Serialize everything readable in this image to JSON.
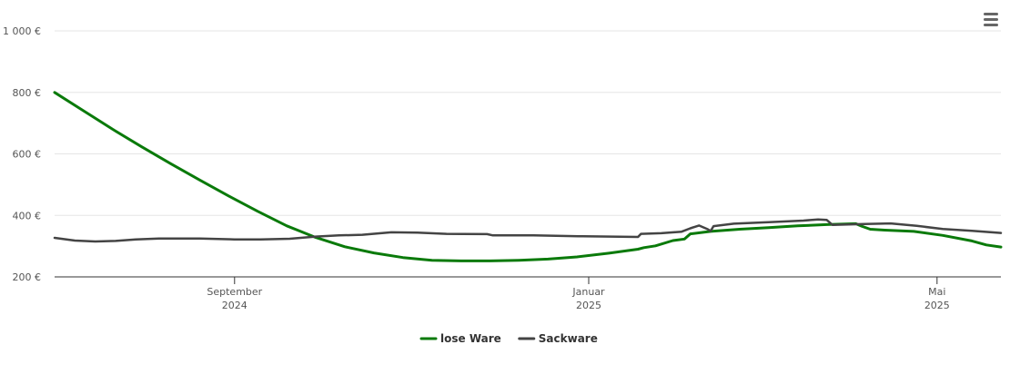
{
  "chart_data": {
    "type": "line",
    "title": "",
    "xlabel": "",
    "ylabel": "",
    "ylim": [
      200,
      1000
    ],
    "yticks": [
      {
        "value": 200,
        "label": "200 €"
      },
      {
        "value": 400,
        "label": "400 €"
      },
      {
        "value": 600,
        "label": "600 €"
      },
      {
        "value": 800,
        "label": "800 €"
      },
      {
        "value": 1000,
        "label": "1 000 €"
      }
    ],
    "xlim": [
      "2024-07-01",
      "2025-05-23"
    ],
    "xticks": [
      {
        "date": "2024-09-01",
        "label": [
          "September",
          "2024"
        ]
      },
      {
        "date": "2025-01-01",
        "label": [
          "Januar",
          "2025"
        ]
      },
      {
        "date": "2025-05-01",
        "label": [
          "Mai",
          "2025"
        ]
      }
    ],
    "grid": true,
    "legend_position": "bottom-center",
    "series": [
      {
        "name": "lose Ware",
        "color": "#0a7a0a",
        "points": [
          [
            "2024-07-01",
            800
          ],
          [
            "2024-07-11",
            740
          ],
          [
            "2024-07-21",
            680
          ],
          [
            "2024-07-31",
            623
          ],
          [
            "2024-08-10",
            568
          ],
          [
            "2024-08-20",
            515
          ],
          [
            "2024-08-30",
            463
          ],
          [
            "2024-09-09",
            413
          ],
          [
            "2024-09-19",
            366
          ],
          [
            "2024-09-29",
            328
          ],
          [
            "2024-10-09",
            298
          ],
          [
            "2024-10-19",
            278
          ],
          [
            "2024-10-29",
            263
          ],
          [
            "2024-11-08",
            254
          ],
          [
            "2024-11-18",
            252
          ],
          [
            "2024-11-28",
            252
          ],
          [
            "2024-12-08",
            254
          ],
          [
            "2024-12-18",
            258
          ],
          [
            "2024-12-28",
            265
          ],
          [
            "2025-01-08",
            277
          ],
          [
            "2025-01-18",
            290
          ],
          [
            "2025-01-20",
            295
          ],
          [
            "2025-01-24",
            301
          ],
          [
            "2025-01-30",
            318
          ],
          [
            "2025-02-03",
            323
          ],
          [
            "2025-02-05",
            340
          ],
          [
            "2025-02-12",
            348
          ],
          [
            "2025-02-22",
            355
          ],
          [
            "2025-03-04",
            360
          ],
          [
            "2025-03-14",
            366
          ],
          [
            "2025-03-24",
            370
          ],
          [
            "2025-04-03",
            373
          ],
          [
            "2025-04-05",
            365
          ],
          [
            "2025-04-08",
            355
          ],
          [
            "2025-04-13",
            352
          ],
          [
            "2025-04-23",
            348
          ],
          [
            "2025-05-03",
            335
          ],
          [
            "2025-05-13",
            317
          ],
          [
            "2025-05-18",
            304
          ],
          [
            "2025-05-23",
            297
          ]
        ]
      },
      {
        "name": "Sackware",
        "color": "#444444",
        "points": [
          [
            "2024-07-01",
            327
          ],
          [
            "2024-07-08",
            318
          ],
          [
            "2024-07-15",
            315
          ],
          [
            "2024-07-22",
            317
          ],
          [
            "2024-07-29",
            322
          ],
          [
            "2024-08-06",
            325
          ],
          [
            "2024-08-20",
            325
          ],
          [
            "2024-09-01",
            322
          ],
          [
            "2024-09-10",
            322
          ],
          [
            "2024-09-20",
            324
          ],
          [
            "2024-09-29",
            331
          ],
          [
            "2024-10-07",
            335
          ],
          [
            "2024-10-15",
            337
          ],
          [
            "2024-10-25",
            345
          ],
          [
            "2024-11-03",
            344
          ],
          [
            "2024-11-13",
            340
          ],
          [
            "2024-11-27",
            339
          ],
          [
            "2024-11-29",
            335
          ],
          [
            "2024-12-13",
            335
          ],
          [
            "2024-12-30",
            332
          ],
          [
            "2025-01-18",
            330
          ],
          [
            "2025-01-19",
            340
          ],
          [
            "2025-01-26",
            342
          ],
          [
            "2025-02-02",
            347
          ],
          [
            "2025-02-05",
            358
          ],
          [
            "2025-02-08",
            367
          ],
          [
            "2025-02-11",
            355
          ],
          [
            "2025-02-12",
            349
          ],
          [
            "2025-02-13",
            365
          ],
          [
            "2025-02-20",
            373
          ],
          [
            "2025-03-04",
            378
          ],
          [
            "2025-03-16",
            383
          ],
          [
            "2025-03-21",
            387
          ],
          [
            "2025-03-24",
            385
          ],
          [
            "2025-03-26",
            369
          ],
          [
            "2025-04-06",
            372
          ],
          [
            "2025-04-15",
            374
          ],
          [
            "2025-04-24",
            366
          ],
          [
            "2025-05-03",
            356
          ],
          [
            "2025-05-13",
            350
          ],
          [
            "2025-05-23",
            343
          ]
        ]
      }
    ]
  },
  "menu": {
    "icon": "hamburger-menu-icon"
  }
}
